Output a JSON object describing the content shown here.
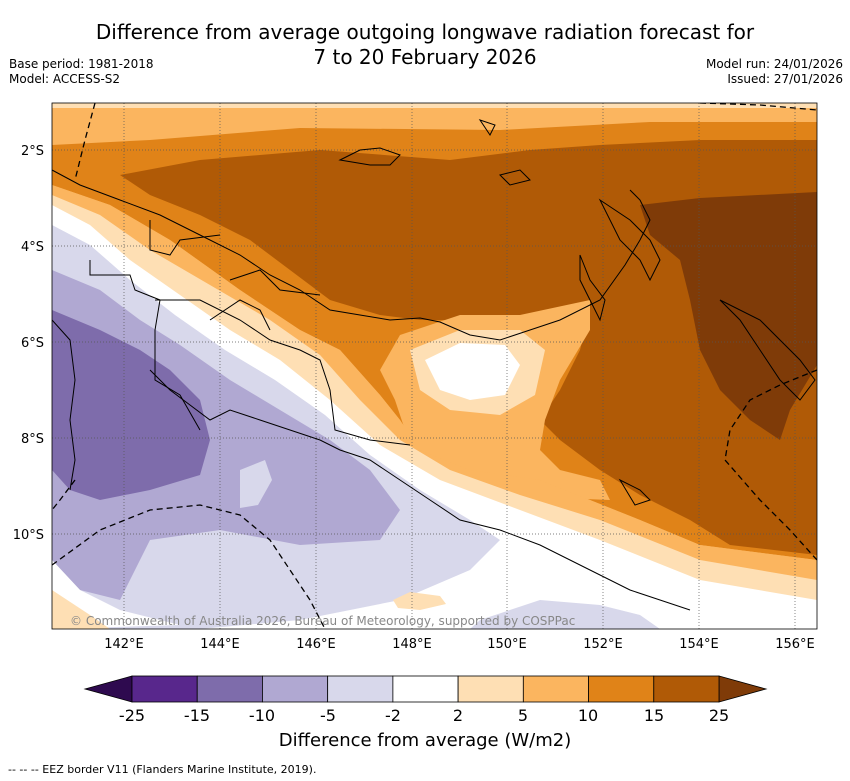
{
  "title_line1": "Difference from average outgoing longwave radiation forecast for",
  "title_line2": "7 to 20 February 2026",
  "meta_left": {
    "base_period": "Base period: 1981-2018",
    "model": "Model: ACCESS-S2"
  },
  "meta_right": {
    "model_run": "Model run: 24/01/2026",
    "issued": "Issued: 27/01/2026"
  },
  "lat_ticks": [
    "2°S",
    "4°S",
    "6°S",
    "8°S",
    "10°S"
  ],
  "lon_ticks": [
    "142°E",
    "144°E",
    "146°E",
    "148°E",
    "150°E",
    "152°E",
    "154°E",
    "156°E"
  ],
  "attribution": "© Commonwealth of Australia 2026, Bureau of Meteorology, supported by COSPPac",
  "colorbar": {
    "ticks": [
      "-25",
      "-15",
      "-10",
      "-5",
      "-2",
      "2",
      "5",
      "10",
      "15",
      "25"
    ],
    "colors": [
      "#58278c",
      "#7e6cab",
      "#b0a8d2",
      "#d8d8eb",
      "#ffffff",
      "#fedfb4",
      "#fbb55f",
      "#e08318",
      "#b05a06"
    ],
    "under_color": "#2e0a4f",
    "over_color": "#7f3b08",
    "label": "Difference from average (W/m2)"
  },
  "footnote": "-- -- -- EEZ border V11 (Flanders Marine Institute, 2019)."
}
